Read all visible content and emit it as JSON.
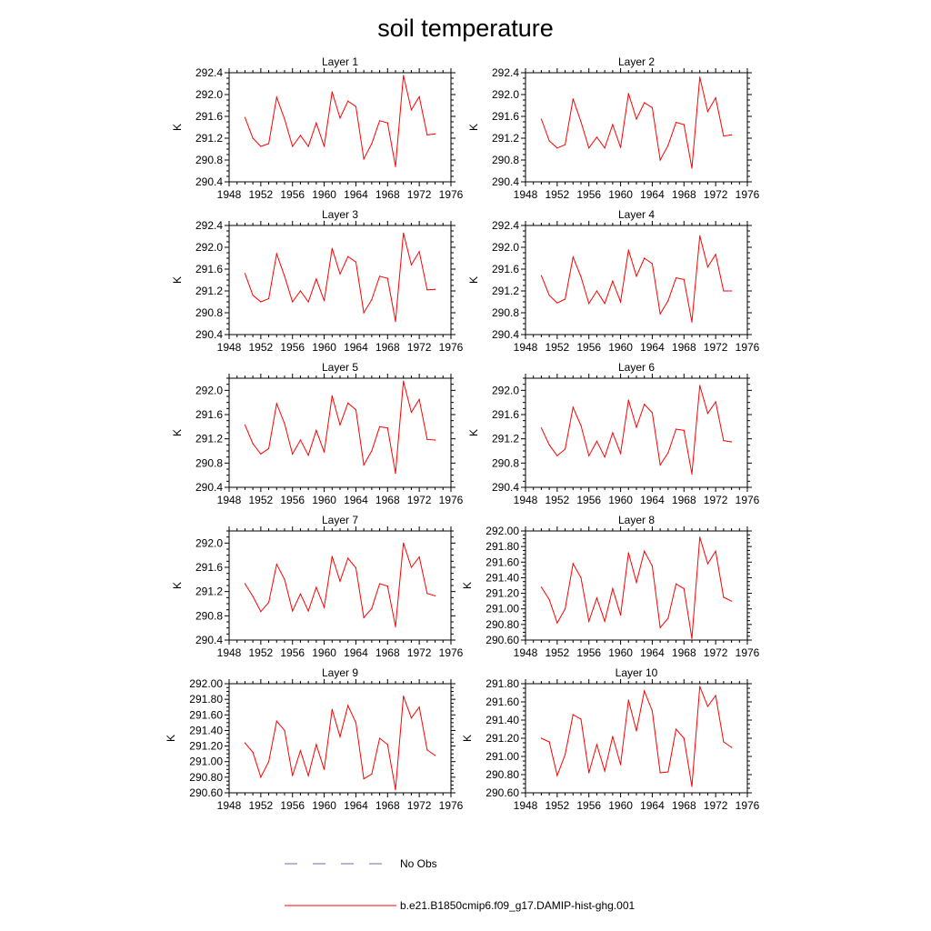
{
  "chart_data": {
    "title": "soil temperature",
    "type": "line",
    "x": [
      1950,
      1951,
      1952,
      1953,
      1954,
      1955,
      1956,
      1957,
      1958,
      1959,
      1960,
      1961,
      1962,
      1963,
      1964,
      1965,
      1966,
      1967,
      1968,
      1969,
      1970,
      1971,
      1972,
      1973,
      1974
    ],
    "xlim": [
      1948,
      1976
    ],
    "xticks": [
      "1948",
      "1952",
      "1956",
      "1960",
      "1964",
      "1968",
      "1972",
      "1976"
    ],
    "ylabel": "K",
    "grid": false,
    "colors": {
      "model": "#ff0000",
      "obs": "#6b6bb5"
    },
    "legend": {
      "placement": "bottom",
      "entries": [
        {
          "label": "No Obs",
          "style": "dashed",
          "color": "#6b6bb5"
        },
        {
          "label": "b.e21.B1850cmip6.f09_g17.DAMIP-hist-ghg.001",
          "style": "solid",
          "color": "#ff0000"
        }
      ]
    },
    "panels": [
      {
        "title": "Layer 1",
        "ylim": [
          290.4,
          292.4
        ],
        "yticks": [
          "290.4",
          "290.8",
          "291.2",
          "291.6",
          "292.0",
          "292.4"
        ],
        "values": [
          291.58,
          291.2,
          291.05,
          291.1,
          291.95,
          291.55,
          291.05,
          291.25,
          291.05,
          291.48,
          291.05,
          292.05,
          291.57,
          291.88,
          291.78,
          290.82,
          291.1,
          291.52,
          291.48,
          290.68,
          292.35,
          291.72,
          291.96,
          291.26,
          291.28
        ]
      },
      {
        "title": "Layer 2",
        "ylim": [
          290.4,
          292.4
        ],
        "yticks": [
          "290.4",
          "290.8",
          "291.2",
          "291.6",
          "292.0",
          "292.4"
        ],
        "values": [
          291.55,
          291.15,
          291.02,
          291.08,
          291.92,
          291.5,
          291.02,
          291.22,
          291.02,
          291.45,
          291.03,
          292.02,
          291.55,
          291.85,
          291.76,
          290.8,
          291.07,
          291.49,
          291.45,
          290.65,
          292.32,
          291.69,
          291.94,
          291.24,
          291.26
        ]
      },
      {
        "title": "Layer 3",
        "ylim": [
          290.4,
          292.4
        ],
        "yticks": [
          "290.4",
          "290.8",
          "291.2",
          "291.6",
          "292.0",
          "292.4"
        ],
        "values": [
          291.52,
          291.12,
          291.0,
          291.06,
          291.88,
          291.47,
          291.0,
          291.2,
          291.0,
          291.42,
          291.02,
          291.98,
          291.51,
          291.83,
          291.73,
          290.8,
          291.04,
          291.47,
          291.43,
          290.64,
          292.26,
          291.68,
          291.92,
          291.22,
          291.23
        ]
      },
      {
        "title": "Layer 4",
        "ylim": [
          290.4,
          292.4
        ],
        "yticks": [
          "290.4",
          "290.8",
          "291.2",
          "291.6",
          "292.0",
          "292.4"
        ],
        "values": [
          291.48,
          291.12,
          290.98,
          291.05,
          291.82,
          291.46,
          290.97,
          291.2,
          290.97,
          291.38,
          291.0,
          291.95,
          291.47,
          291.8,
          291.7,
          290.78,
          291.02,
          291.44,
          291.41,
          290.63,
          292.21,
          291.64,
          291.87,
          291.2,
          291.2
        ]
      },
      {
        "title": "Layer 5",
        "ylim": [
          290.4,
          292.2
        ],
        "yticks": [
          "290.4",
          "290.8",
          "291.2",
          "291.6",
          "292.0"
        ],
        "values": [
          291.43,
          291.12,
          290.95,
          291.04,
          291.78,
          291.45,
          290.95,
          291.18,
          290.93,
          291.34,
          290.98,
          291.91,
          291.43,
          291.79,
          291.68,
          290.77,
          291.0,
          291.4,
          291.38,
          290.63,
          292.15,
          291.64,
          291.85,
          291.19,
          291.18
        ]
      },
      {
        "title": "Layer 6",
        "ylim": [
          290.4,
          292.2
        ],
        "yticks": [
          "290.4",
          "290.8",
          "291.2",
          "291.6",
          "292.0"
        ],
        "values": [
          291.38,
          291.1,
          290.92,
          291.03,
          291.72,
          291.42,
          290.92,
          291.16,
          290.9,
          291.3,
          290.96,
          291.84,
          291.39,
          291.77,
          291.63,
          290.77,
          290.97,
          291.36,
          291.34,
          290.62,
          292.08,
          291.62,
          291.81,
          291.17,
          291.15
        ]
      },
      {
        "title": "Layer 7",
        "ylim": [
          290.4,
          292.2
        ],
        "yticks": [
          "290.4",
          "290.8",
          "291.2",
          "291.6",
          "292.0"
        ],
        "values": [
          291.33,
          291.12,
          290.87,
          291.02,
          291.65,
          291.4,
          290.88,
          291.16,
          290.88,
          291.27,
          290.94,
          291.78,
          291.37,
          291.75,
          291.59,
          290.77,
          290.92,
          291.33,
          291.29,
          290.62,
          292.0,
          291.6,
          291.77,
          291.17,
          291.13
        ]
      },
      {
        "title": "Layer 8",
        "ylim": [
          290.6,
          292.0
        ],
        "yticks": [
          "290.60",
          "290.80",
          "291.00",
          "291.20",
          "291.40",
          "291.60",
          "291.80",
          "292.00"
        ],
        "values": [
          291.28,
          291.12,
          290.82,
          291.0,
          291.58,
          291.4,
          290.84,
          291.14,
          290.84,
          291.26,
          290.92,
          291.72,
          291.34,
          291.74,
          291.55,
          290.76,
          290.88,
          291.32,
          291.26,
          290.62,
          291.92,
          291.58,
          291.74,
          291.15,
          291.1
        ]
      },
      {
        "title": "Layer 9",
        "ylim": [
          290.6,
          292.0
        ],
        "yticks": [
          "290.60",
          "290.80",
          "291.00",
          "291.20",
          "291.40",
          "291.60",
          "291.80",
          "292.00"
        ],
        "values": [
          291.24,
          291.12,
          290.8,
          291.0,
          291.52,
          291.4,
          290.82,
          291.14,
          290.82,
          291.22,
          290.9,
          291.67,
          291.32,
          291.72,
          291.5,
          290.78,
          290.84,
          291.3,
          291.22,
          290.64,
          291.84,
          291.56,
          291.7,
          291.15,
          291.08
        ]
      },
      {
        "title": "Layer 10",
        "ylim": [
          290.6,
          291.8
        ],
        "yticks": [
          "290.60",
          "290.80",
          "291.00",
          "291.20",
          "291.40",
          "291.60",
          "291.80"
        ],
        "values": [
          291.2,
          291.16,
          290.79,
          291.02,
          291.46,
          291.41,
          290.82,
          291.13,
          290.84,
          291.22,
          290.91,
          291.62,
          291.28,
          291.72,
          291.5,
          290.82,
          290.83,
          291.3,
          291.2,
          290.67,
          291.77,
          291.55,
          291.67,
          291.16,
          291.1
        ]
      }
    ]
  }
}
